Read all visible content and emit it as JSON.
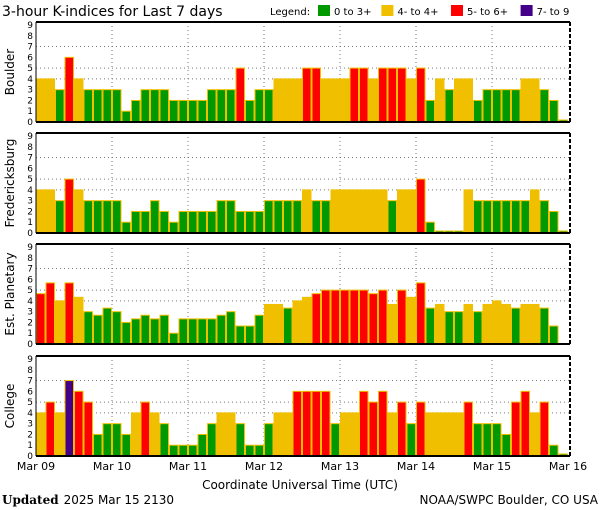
{
  "chart_data": {
    "type": "bar",
    "title": "3-hour K-indices for Last 7 days",
    "legend_label": "Legend:",
    "legend": [
      {
        "label": "0 to 3+",
        "color": "#009900"
      },
      {
        "label": "4- to 4+",
        "color": "#f0c000"
      },
      {
        "label": "5- to 6+",
        "color": "#ff0000"
      },
      {
        "label": "7- to 9",
        "color": "#440088"
      }
    ],
    "legend_placement": "top-right",
    "xlabel": "Coordinate Universal Time (UTC)",
    "x_ticks": [
      "Mar 09",
      "Mar 10",
      "Mar 11",
      "Mar 12",
      "Mar 13",
      "Mar 14",
      "Mar 15",
      "Mar 16"
    ],
    "bars_per_day": 8,
    "ylim": [
      0,
      9
    ],
    "y_ticks": [
      "0",
      "1",
      "2",
      "3",
      "4",
      "5",
      "6",
      "7",
      "8",
      "9"
    ],
    "gridlines_y": [
      4,
      5,
      7
    ],
    "panels": [
      {
        "name": "Boulder",
        "values": [
          4,
          4,
          3,
          6,
          4,
          3,
          3,
          3,
          3,
          1,
          2,
          3,
          3,
          3,
          2,
          2,
          2,
          2,
          3,
          3,
          3,
          5,
          2,
          3,
          3,
          4,
          4,
          4,
          5,
          5,
          4,
          4,
          4,
          5,
          5,
          4,
          5,
          5,
          5,
          4,
          5,
          2,
          4,
          3,
          4,
          4,
          2,
          3,
          3,
          3,
          3,
          4,
          4,
          3,
          2,
          0
        ]
      },
      {
        "name": "Fredericksburg",
        "values": [
          4,
          4,
          3,
          5,
          4,
          3,
          3,
          3,
          3,
          1,
          2,
          2,
          3,
          2,
          1,
          2,
          2,
          2,
          2,
          3,
          3,
          2,
          2,
          2,
          3,
          3,
          3,
          3,
          4,
          3,
          3,
          4,
          4,
          4,
          4,
          4,
          4,
          3,
          4,
          4,
          5,
          1,
          0,
          0,
          0,
          4,
          3,
          3,
          3,
          3,
          3,
          3,
          4,
          3,
          2,
          0
        ]
      },
      {
        "name": "Est. Planetary",
        "values": [
          4.67,
          5.67,
          4,
          5.67,
          4.33,
          3,
          2.67,
          3.33,
          3,
          2,
          2.33,
          2.67,
          2.33,
          2.67,
          1,
          2.33,
          2.33,
          2.33,
          2.33,
          2.67,
          3,
          1.67,
          1.67,
          2.67,
          3.67,
          3.67,
          3.33,
          4,
          4.33,
          4.67,
          5,
          5,
          5,
          5,
          5,
          4.67,
          5,
          3.67,
          5,
          4.33,
          5.67,
          3.33,
          3.67,
          3,
          3,
          3.67,
          3,
          3.67,
          4,
          3.67,
          3.33,
          3.67,
          3.67,
          3.33,
          1.67
        ]
      },
      {
        "name": "College",
        "values": [
          4,
          5,
          4,
          7,
          6,
          5,
          2,
          3,
          3,
          2,
          4,
          5,
          4,
          3,
          1,
          1,
          1,
          2,
          3,
          4,
          4,
          3,
          1,
          1,
          3,
          4,
          4,
          6,
          6,
          6,
          6,
          3,
          4,
          4,
          6,
          5,
          6,
          4,
          5,
          3,
          5,
          4,
          4,
          4,
          4,
          5,
          3,
          3,
          3,
          2,
          5,
          6,
          4,
          5,
          1,
          0
        ]
      }
    ]
  },
  "footer": {
    "updated_label": "Updated",
    "updated_value": "2025 Mar 15 2130",
    "credit": "NOAA/SWPC Boulder, CO USA"
  }
}
